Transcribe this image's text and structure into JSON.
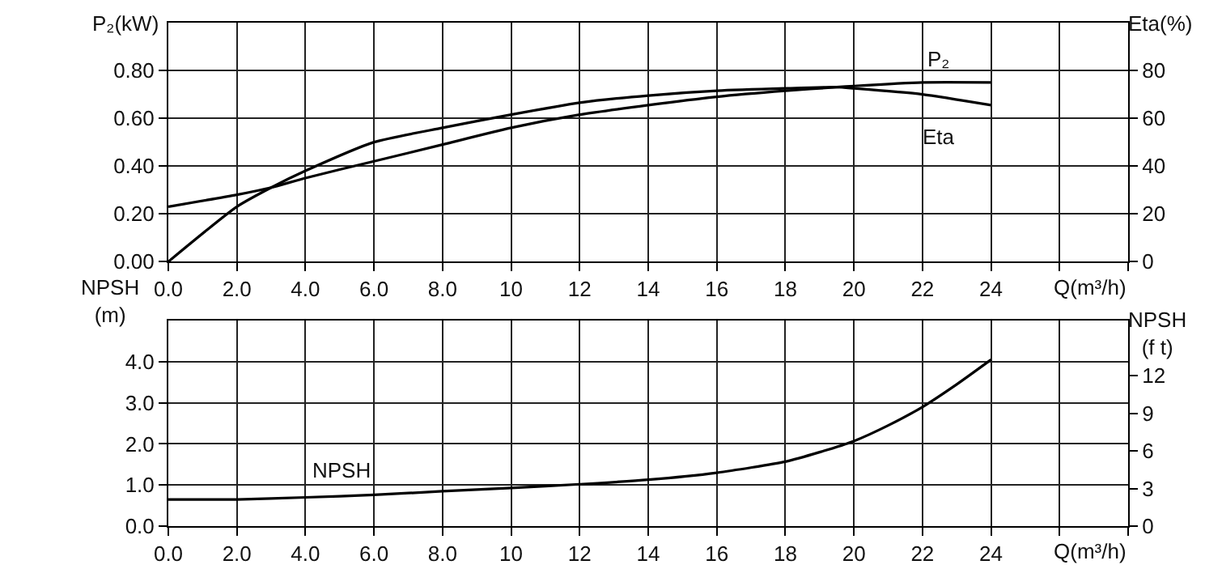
{
  "chart_data": [
    {
      "type": "line",
      "xlabel": "Q(m³/h)",
      "ylabel": "P₂(kW)",
      "y2label": "Eta(%)",
      "grid": true,
      "marker": "none",
      "line_style": "solid",
      "x": [
        0,
        2,
        3,
        4,
        6,
        8,
        10,
        12,
        14,
        16,
        18,
        19.5,
        20,
        22,
        24
      ],
      "series": [
        {
          "name": "P₂",
          "color": "#000000",
          "values": [
            0.23,
            0.28,
            0.31,
            0.35,
            0.42,
            0.49,
            0.56,
            0.615,
            0.655,
            0.69,
            0.715,
            0.73,
            0.735,
            0.75,
            0.75
          ]
        },
        {
          "name": "Eta",
          "color": "#000000",
          "axis": "y2",
          "values": [
            0,
            23,
            31,
            38,
            50,
            56,
            61.5,
            66.5,
            69.5,
            71.5,
            72.5,
            73,
            72.5,
            70,
            65.5
          ]
        }
      ],
      "xlim": [
        0,
        28
      ],
      "xticks": [
        {
          "value": 0,
          "label": "0.0"
        },
        {
          "value": 2,
          "label": "2.0"
        },
        {
          "value": 4,
          "label": "4.0"
        },
        {
          "value": 6,
          "label": "6.0"
        },
        {
          "value": 8,
          "label": "8.0"
        },
        10,
        12,
        14,
        16,
        18,
        20,
        22,
        24,
        {
          "value": 26,
          "label": null
        },
        {
          "value": 28,
          "label": null
        }
      ],
      "ylim": [
        0,
        1.0
      ],
      "yticks": [
        {
          "value": 0,
          "label": "0.00"
        },
        {
          "value": 0.2,
          "label": "0.20"
        },
        {
          "value": 0.4,
          "label": "0.40"
        },
        {
          "value": 0.6,
          "label": "0.60"
        },
        {
          "value": 0.8,
          "label": "0.80"
        }
      ],
      "y2lim": [
        0,
        100
      ],
      "y2ticks": [
        0,
        20,
        40,
        60,
        80
      ]
    },
    {
      "type": "line",
      "xlabel": "Q(m³/h)",
      "ylabel": "NPSH\n(m)",
      "y2label": "NPSH\n(f t)",
      "grid": true,
      "marker": "none",
      "line_style": "solid",
      "x": [
        0,
        2,
        4,
        6,
        8,
        10,
        12,
        14,
        16,
        18,
        19,
        20,
        21,
        22,
        23,
        24
      ],
      "series": [
        {
          "name": "NPSH",
          "color": "#000000",
          "values": [
            0.65,
            0.65,
            0.7,
            0.76,
            0.85,
            0.93,
            1.02,
            1.13,
            1.3,
            1.57,
            1.8,
            2.07,
            2.45,
            2.9,
            3.45,
            4.05
          ]
        }
      ],
      "xlim": [
        0,
        28
      ],
      "xticks": [
        {
          "value": 0,
          "label": "0.0"
        },
        {
          "value": 2,
          "label": "2.0"
        },
        {
          "value": 4,
          "label": "4.0"
        },
        {
          "value": 6,
          "label": "6.0"
        },
        {
          "value": 8,
          "label": "8.0"
        },
        10,
        12,
        14,
        16,
        18,
        20,
        22,
        24,
        {
          "value": 26,
          "label": null
        },
        {
          "value": 28,
          "label": null
        }
      ],
      "ylim": [
        0,
        5.0
      ],
      "yticks": [
        {
          "value": 0,
          "label": "0.0"
        },
        {
          "value": 1,
          "label": "1.0"
        },
        {
          "value": 2,
          "label": "2.0"
        },
        {
          "value": 3,
          "label": "3.0"
        },
        {
          "value": 4,
          "label": "4.0"
        }
      ],
      "y2lim": [
        0,
        16.4
      ],
      "y2ticks": [
        0,
        3,
        6,
        9,
        12
      ]
    }
  ]
}
